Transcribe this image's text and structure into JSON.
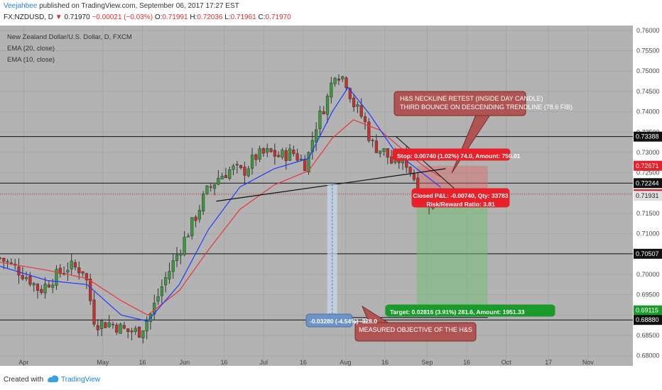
{
  "header": {
    "author": "Veejahbee",
    "published": "published on TradingView.com, September 06, 2017 17:27 EST",
    "symbol": "FX:NZDUSD, D",
    "last": "0.71970",
    "change": "−0.00021 (−0.03%)",
    "o_label": "O:",
    "o": "0.71991",
    "h_label": "H:",
    "h": "0.72036",
    "l_label": "L:",
    "l": "0.71961",
    "c_label": "C:",
    "c": "0.71970"
  },
  "footer": {
    "created": "Created with",
    "brand": "TradingView"
  },
  "colors": {
    "up": "#3c9a3c",
    "down": "#c9302c",
    "ema20": "#e8373c",
    "ema10": "#1f3bff",
    "bg": "#b3b3b3",
    "axis_bg": "#ffffff"
  },
  "chart_data": {
    "type": "candlestick",
    "title": "New Zealand Dollar/U.S. Dollar, D, FXCM",
    "indicators": [
      "EMA (20, close)",
      "EMA (10, close)"
    ],
    "ylim": [
      0.6775,
      0.7612
    ],
    "yticks": [
      0.68,
      0.685,
      0.69,
      0.695,
      0.7,
      0.705,
      0.71,
      0.715,
      0.72,
      0.725,
      0.73,
      0.735,
      0.74,
      0.745,
      0.75,
      0.755,
      0.76
    ],
    "ytick_labels": [
      "0.68000",
      "0.68500",
      "0.69000",
      "0.69500",
      "0.70000",
      "0.70500",
      "0.71000",
      "0.71500",
      "0.72000",
      "0.72500",
      "0.73000",
      "0.73500",
      "0.74000",
      "0.74500",
      "0.75000",
      "0.75500",
      "0.76000"
    ],
    "xlim": [
      "2017-03-23",
      "2017-11-18"
    ],
    "x_ticks": [
      {
        "date": "2017-04-01",
        "label": "Apr"
      },
      {
        "date": "2017-05-01",
        "label": "May"
      },
      {
        "date": "2017-05-16",
        "label": "16"
      },
      {
        "date": "2017-06-01",
        "label": "Jun"
      },
      {
        "date": "2017-06-16",
        "label": "16"
      },
      {
        "date": "2017-07-01",
        "label": "Jul"
      },
      {
        "date": "2017-07-16",
        "label": "16"
      },
      {
        "date": "2017-08-01",
        "label": "Aug"
      },
      {
        "date": "2017-08-16",
        "label": "16"
      },
      {
        "date": "2017-09-01",
        "label": "Sep"
      },
      {
        "date": "2017-09-16",
        "label": "16"
      },
      {
        "date": "2017-10-01",
        "label": "Oct"
      },
      {
        "date": "2017-10-17",
        "label": "17"
      },
      {
        "date": "2017-11-01",
        "label": "Nov"
      }
    ],
    "close_path": [
      [
        "2017-03-23",
        0.704
      ],
      [
        "2017-03-28",
        0.702
      ],
      [
        "2017-04-03",
        0.699
      ],
      [
        "2017-04-07",
        0.696
      ],
      [
        "2017-04-12",
        0.699
      ],
      [
        "2017-04-18",
        0.702
      ],
      [
        "2017-04-24",
        0.701
      ],
      [
        "2017-04-28",
        0.688
      ],
      [
        "2017-05-04",
        0.688
      ],
      [
        "2017-05-10",
        0.686
      ],
      [
        "2017-05-15",
        0.686
      ],
      [
        "2017-05-19",
        0.69
      ],
      [
        "2017-05-24",
        0.698
      ],
      [
        "2017-05-30",
        0.706
      ],
      [
        "2017-06-05",
        0.714
      ],
      [
        "2017-06-09",
        0.72
      ],
      [
        "2017-06-14",
        0.724
      ],
      [
        "2017-06-19",
        0.726
      ],
      [
        "2017-06-23",
        0.725
      ],
      [
        "2017-06-28",
        0.729
      ],
      [
        "2017-07-03",
        0.73
      ],
      [
        "2017-07-07",
        0.729
      ],
      [
        "2017-07-12",
        0.73
      ],
      [
        "2017-07-17",
        0.727
      ],
      [
        "2017-07-21",
        0.737
      ],
      [
        "2017-07-25",
        0.743
      ],
      [
        "2017-07-28",
        0.75
      ],
      [
        "2017-08-01",
        0.748
      ],
      [
        "2017-08-04",
        0.742
      ],
      [
        "2017-08-08",
        0.738
      ],
      [
        "2017-08-11",
        0.732
      ],
      [
        "2017-08-16",
        0.73
      ],
      [
        "2017-08-19",
        0.727
      ],
      [
        "2017-08-23",
        0.729
      ],
      [
        "2017-08-26",
        0.725
      ],
      [
        "2017-08-30",
        0.72
      ],
      [
        "2017-09-01",
        0.717
      ],
      [
        "2017-09-04",
        0.721
      ],
      [
        "2017-09-06",
        0.7197
      ]
    ],
    "candle_count": 118,
    "ema20_path": [
      [
        "2017-03-23",
        0.703
      ],
      [
        "2017-04-10",
        0.701
      ],
      [
        "2017-04-25",
        0.699
      ],
      [
        "2017-05-08",
        0.6935
      ],
      [
        "2017-05-18",
        0.69
      ],
      [
        "2017-05-30",
        0.696
      ],
      [
        "2017-06-10",
        0.706
      ],
      [
        "2017-06-22",
        0.716
      ],
      [
        "2017-07-05",
        0.722
      ],
      [
        "2017-07-18",
        0.7255
      ],
      [
        "2017-07-27",
        0.7335
      ],
      [
        "2017-08-04",
        0.738
      ],
      [
        "2017-08-14",
        0.7355
      ],
      [
        "2017-08-24",
        0.73
      ],
      [
        "2017-09-01",
        0.726
      ],
      [
        "2017-09-06",
        0.724
      ]
    ],
    "ema10_path": [
      [
        "2017-03-23",
        0.702
      ],
      [
        "2017-04-10",
        0.6985
      ],
      [
        "2017-04-25",
        0.6975
      ],
      [
        "2017-05-08",
        0.69
      ],
      [
        "2017-05-18",
        0.6885
      ],
      [
        "2017-05-30",
        0.6975
      ],
      [
        "2017-06-10",
        0.711
      ],
      [
        "2017-06-22",
        0.7215
      ],
      [
        "2017-07-05",
        0.726
      ],
      [
        "2017-07-18",
        0.7285
      ],
      [
        "2017-07-27",
        0.74
      ],
      [
        "2017-08-02",
        0.746
      ],
      [
        "2017-08-10",
        0.7395
      ],
      [
        "2017-08-20",
        0.73
      ],
      [
        "2017-09-01",
        0.724
      ],
      [
        "2017-09-06",
        0.7215
      ]
    ],
    "horizontal_lines": [
      0.73388,
      0.72244,
      0.70507,
      0.6888
    ],
    "current_price_line": 0.7197,
    "neckline": [
      [
        "2017-06-13",
        0.718
      ],
      [
        "2017-09-08",
        0.726
      ]
    ],
    "trendline": [
      [
        "2017-08-20",
        0.734
      ],
      [
        "2017-09-15",
        0.719
      ]
    ],
    "measure_arrow": {
      "x": "2017-07-27",
      "from": 0.7222,
      "to": 0.6894
    },
    "position": {
      "x0": "2017-08-28",
      "x1": "2017-09-24",
      "entry": 0.71931,
      "stop": 0.72671,
      "target": 0.69115,
      "current": 0.7197
    },
    "price_labels": [
      {
        "value": 0.73388,
        "text": "0.73388",
        "style": "line"
      },
      {
        "value": 0.72671,
        "text": "0.72671",
        "style": "stop"
      },
      {
        "value": 0.72244,
        "text": "0.72244",
        "style": "line"
      },
      {
        "value": 0.7197,
        "text": "0.71970",
        "style": "price"
      },
      {
        "value": 0.71931,
        "text": "0.71931",
        "style": "entry"
      },
      {
        "value": 0.70507,
        "text": "0.70507",
        "style": "line"
      },
      {
        "value": 0.69115,
        "text": "0.69115",
        "style": "target"
      },
      {
        "value": 0.6888,
        "text": "0.68880",
        "style": "line"
      }
    ],
    "annotations": {
      "hs_title": "H&S NECKLINE RETEST (INSIDE DAY CANDLE)",
      "hs_sub": "THIRD BOUNCE ON DESCENDING TRENDLINE (78.6 FIB)",
      "measured": "MEASURED OBJECTIVE OF THE H&S",
      "stop": "Stop: 0.00740 (1.02%) 74.0, Amount: 750.01",
      "closed": "Closed P&L: -0.00740, Qty: 33783",
      "rr": "Risk/Reward Ratio: 3.81",
      "target": "Target: 0.02816 (3.91%) 281.6, Amount: 1951.33",
      "measure": "-0.03280 (-4.54%) -328.0"
    }
  }
}
